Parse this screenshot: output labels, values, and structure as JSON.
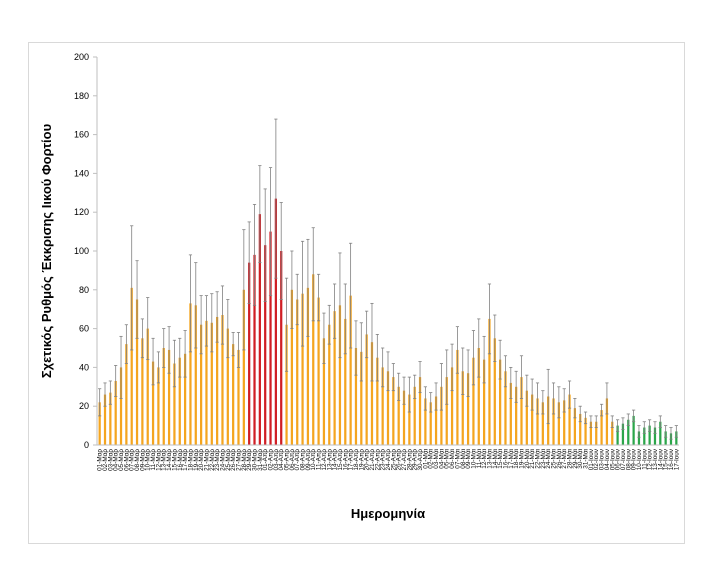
{
  "chart_data": {
    "type": "bar",
    "xlabel": "Ημερομηνία",
    "ylabel": "Σχετικός Ρυθμός Έκκρισης Ιικού Φορτίου",
    "ylim": [
      0,
      200
    ],
    "yticks": [
      0,
      20,
      40,
      60,
      80,
      100,
      120,
      140,
      160,
      180,
      200
    ],
    "grid": false,
    "legend": "none",
    "colors": {
      "orange": "#F4A51F",
      "red": "#D01E24",
      "green": "#2BA64A",
      "error": "#808080"
    },
    "categories": [
      "01-Μαρ",
      "02-Μαρ",
      "03-Μαρ",
      "04-Μαρ",
      "05-Μαρ",
      "06-Μαρ",
      "07-Μαρ",
      "08-Μαρ",
      "09-Μαρ",
      "10-Μαρ",
      "11-Μαρ",
      "12-Μαρ",
      "13-Μαρ",
      "14-Μαρ",
      "15-Μαρ",
      "16-Μαρ",
      "17-Μαρ",
      "18-Μαρ",
      "19-Μαρ",
      "20-Μαρ",
      "21-Μαρ",
      "22-Μαρ",
      "23-Μαρ",
      "24-Μαρ",
      "25-Μαρ",
      "26-Μαρ",
      "27-Μαρ",
      "28-Μαρ",
      "29-Μαρ",
      "30-Μαρ",
      "31-Μαρ",
      "01-Απρ",
      "02-Απρ",
      "03-Απρ",
      "04-Απρ",
      "05-Απρ",
      "06-Απρ",
      "07-Απρ",
      "08-Απρ",
      "09-Απρ",
      "10-Απρ",
      "11-Απρ",
      "12-Απρ",
      "13-Απρ",
      "14-Απρ",
      "15-Απρ",
      "16-Απρ",
      "17-Απρ",
      "18-Απρ",
      "19-Απρ",
      "20-Απρ",
      "21-Απρ",
      "22-Απρ",
      "23-Απρ",
      "24-Απρ",
      "25-Απρ",
      "26-Απρ",
      "27-Απρ",
      "28-Απρ",
      "29-Απρ",
      "30-Απρ",
      "01-Μάι",
      "02-Μάι",
      "03-Μάι",
      "04-Μάι",
      "05-Μάι",
      "06-Μάι",
      "07-Μάι",
      "08-Μάι",
      "09-Μάι",
      "10-Μάι",
      "11-Μάι",
      "12-Μάι",
      "13-Μάι",
      "14-Μάι",
      "15-Μάι",
      "16-Μάι",
      "17-Μάι",
      "18-Μάι",
      "19-Μάι",
      "20-Μάι",
      "21-Μάι",
      "22-Μάι",
      "23-Μάι",
      "24-Μάι",
      "25-Μάι",
      "26-Μάι",
      "27-Μάι",
      "28-Μάι",
      "29-Μάι",
      "30-Μάι",
      "31-Μάι",
      "01-Ιουν",
      "02-Ιουν",
      "03-Ιουν",
      "04-Ιουν",
      "05-Ιουν",
      "06-Ιουν",
      "07-Ιουν",
      "08-Ιουν",
      "09-Ιουν",
      "10-Ιουν",
      "11-Ιουν",
      "12-Ιουν",
      "13-Ιουν",
      "14-Ιουν",
      "15-Ιουν",
      "16-Ιουν",
      "17-Ιουν"
    ],
    "labels_shown": [
      "01-Μαρ",
      "02-Μαρ",
      "03-Μαρ",
      "04-Μαρ",
      "05-Μαρ",
      "06-Μαρ",
      "07-Μαρ",
      "08-Μαρ",
      "09-Μαρ",
      "10-Μαρ",
      "11-Μαρ",
      "12-Μαρ",
      "13-Μαρ",
      "14-Μαρ",
      "15-Μαρ",
      "16-Μαρ",
      "17-Μαρ",
      "18-Μαρ",
      "19-Μαρ",
      "20-Μαρ",
      "21-Μαρ",
      "22-Μαρ",
      "23-Μαρ",
      "24-Μαρ",
      "25-Μαρ",
      "26-Μαρ",
      "27-Μαρ",
      "28-Μαρ",
      "29-Μαρ",
      "30-Μαρ",
      "31-Μαρ",
      "01-Απρ",
      "02-Απρ",
      "03-Απρ",
      "04-Απρ",
      "05-Απρ",
      "06-Απρ",
      "07-Απρ",
      "08-Απρ",
      "09-Απρ",
      "10-Απρ",
      "11-Απρ",
      "12-Απρ",
      "13-Απρ",
      "14-Απρ",
      "15-Απρ",
      "16-Απρ",
      "17-Απρ",
      "18-Απρ",
      "19-Απρ",
      "20-Απρ",
      "21-Απρ",
      "22-Απρ",
      "23-Απρ",
      "24-Απρ",
      "25-Απρ",
      "26-Απρ",
      "27-Απρ",
      "28-Απρ",
      "29-Απρ",
      "30-Απρ",
      "01-Μάι",
      "02-Μάι",
      "03-Μάι",
      "04-Μάι",
      "05-Μάι",
      "06-Μάι",
      "07-Μάι",
      "08-Μάι",
      "09-Μάι",
      "10-Μάι",
      "11-Μάι",
      "12-Μάι",
      "13-Μάι",
      "14-Μάι",
      "15-Μάι",
      "16-Μάι",
      "17-Μάι",
      "18-Μάι",
      "19-Μάι",
      "20-Μάι",
      "21-Μάι",
      "22-Μάι",
      "23-Μάι",
      "24-Μάι",
      "25-Μάι",
      "26-Μάι",
      "27-Μάι",
      "28-Μάι",
      "29-Μάι",
      "30-Μάι",
      "31-Μάι",
      "01-Ιουν",
      "02-Ιουν",
      "03-Ιουν",
      "04-Ιουν",
      "05-Ιουν",
      "06-Ιουν",
      "07-Ιουν",
      "08-Ιουν",
      "09-Ιουν",
      "10-Ιουν",
      "11-Ιουν",
      "12-Ιουν",
      "13-Ιουν",
      "14-Ιουν",
      "15-Ιουν",
      "16-Ιουν",
      "17-Ιουν"
    ],
    "values": [
      22,
      26,
      27,
      33,
      40,
      52,
      81,
      75,
      55,
      60,
      43,
      40,
      50,
      49,
      42,
      45,
      47,
      73,
      72,
      62,
      64,
      63,
      66,
      67,
      60,
      52,
      49,
      80,
      94,
      98,
      119,
      103,
      110,
      127,
      100,
      62,
      80,
      75,
      78,
      81,
      88,
      76,
      55,
      62,
      69,
      72,
      65,
      77,
      50,
      48,
      57,
      53,
      45,
      40,
      38,
      35,
      30,
      28,
      26,
      30,
      35,
      24,
      22,
      25,
      30,
      35,
      40,
      49,
      38,
      37,
      45,
      50,
      44,
      65,
      55,
      44,
      38,
      32,
      30,
      35,
      28,
      26,
      24,
      22,
      25,
      24,
      22,
      23,
      26,
      19,
      16,
      14,
      12,
      12,
      18,
      24,
      12,
      10,
      11,
      13,
      15,
      7,
      9,
      10,
      9,
      12,
      7,
      6,
      7
    ],
    "errors": [
      7,
      6,
      6,
      8,
      16,
      10,
      32,
      20,
      10,
      16,
      12,
      8,
      10,
      12,
      12,
      10,
      12,
      25,
      22,
      15,
      13,
      15,
      13,
      15,
      15,
      6,
      9,
      31,
      21,
      26,
      25,
      29,
      33,
      41,
      25,
      24,
      20,
      13,
      27,
      25,
      24,
      12,
      13,
      10,
      14,
      27,
      18,
      27,
      14,
      15,
      12,
      20,
      12,
      10,
      10,
      7,
      7,
      7,
      9,
      6,
      8,
      6,
      5,
      7,
      12,
      14,
      12,
      12,
      12,
      12,
      14,
      15,
      12,
      18,
      12,
      10,
      8,
      8,
      8,
      11,
      8,
      8,
      8,
      6,
      14,
      8,
      8,
      6,
      7,
      5,
      4,
      3,
      3,
      3,
      3,
      8,
      3,
      3,
      3,
      3,
      3,
      3,
      3,
      3,
      3,
      3,
      3,
      3,
      3
    ],
    "colors_by_index": [
      "orange",
      "orange",
      "orange",
      "orange",
      "orange",
      "orange",
      "orange",
      "orange",
      "orange",
      "orange",
      "orange",
      "orange",
      "orange",
      "orange",
      "orange",
      "orange",
      "orange",
      "orange",
      "orange",
      "orange",
      "orange",
      "orange",
      "orange",
      "orange",
      "orange",
      "orange",
      "orange",
      "orange",
      "red",
      "red",
      "red",
      "red",
      "red",
      "red",
      "red",
      "orange",
      "orange",
      "orange",
      "orange",
      "orange",
      "orange",
      "orange",
      "orange",
      "orange",
      "orange",
      "orange",
      "orange",
      "orange",
      "orange",
      "orange",
      "orange",
      "orange",
      "orange",
      "orange",
      "orange",
      "orange",
      "orange",
      "orange",
      "orange",
      "orange",
      "orange",
      "orange",
      "orange",
      "orange",
      "orange",
      "orange",
      "orange",
      "orange",
      "orange",
      "orange",
      "orange",
      "orange",
      "orange",
      "orange",
      "orange",
      "orange",
      "orange",
      "orange",
      "orange",
      "orange",
      "orange",
      "orange",
      "orange",
      "orange",
      "orange",
      "orange",
      "orange",
      "orange",
      "orange",
      "orange",
      "orange",
      "orange",
      "orange",
      "orange",
      "orange",
      "orange",
      "orange",
      "green",
      "green",
      "green",
      "green",
      "green",
      "green",
      "green",
      "green",
      "green",
      "green",
      "green",
      "green",
      "green",
      "green"
    ]
  }
}
